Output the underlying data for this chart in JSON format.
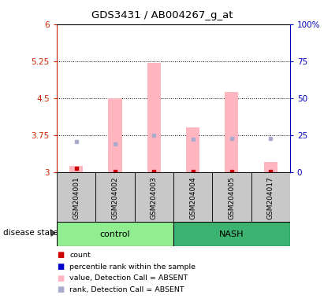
{
  "title": "GDS3431 / AB004267_g_at",
  "samples": [
    "GSM204001",
    "GSM204002",
    "GSM204003",
    "GSM204004",
    "GSM204005",
    "GSM204017"
  ],
  "ylim_left": [
    3.0,
    6.0
  ],
  "ylim_right": [
    0,
    100
  ],
  "yticks_left": [
    3.0,
    3.75,
    4.5,
    5.25,
    6.0
  ],
  "yticks_right": [
    0,
    25,
    50,
    75,
    100
  ],
  "ytick_labels_left": [
    "3",
    "3.75",
    "4.5",
    "5.25",
    "6"
  ],
  "ytick_labels_right": [
    "0",
    "25",
    "50",
    "75",
    "100%"
  ],
  "pink_bar_bottom": 3.0,
  "pink_bar_tops": [
    3.12,
    4.5,
    5.22,
    3.9,
    4.63,
    3.2
  ],
  "red_dot_y": [
    3.07,
    3.02,
    3.02,
    3.02,
    3.02,
    3.02
  ],
  "blue_dot_y": [
    3.62,
    3.58,
    3.75,
    3.67,
    3.68,
    3.69
  ],
  "pink_color": "#FFB6C1",
  "red_color": "#CC0000",
  "blue_color": "#0000CC",
  "light_blue_color": "#AAAACC",
  "control_green": "#90EE90",
  "nash_green": "#3CB371",
  "bg_color": "#C8C8C8",
  "label_color_left": "#CC2200",
  "label_color_right": "#0000BB",
  "disease_state_label": "disease state",
  "control_label": "control",
  "nash_label": "NASH",
  "legend_items": [
    {
      "label": "count",
      "color": "#CC0000"
    },
    {
      "label": "percentile rank within the sample",
      "color": "#0000CC"
    },
    {
      "label": "value, Detection Call = ABSENT",
      "color": "#FFB6C1"
    },
    {
      "label": "rank, Detection Call = ABSENT",
      "color": "#AAAACC"
    }
  ]
}
